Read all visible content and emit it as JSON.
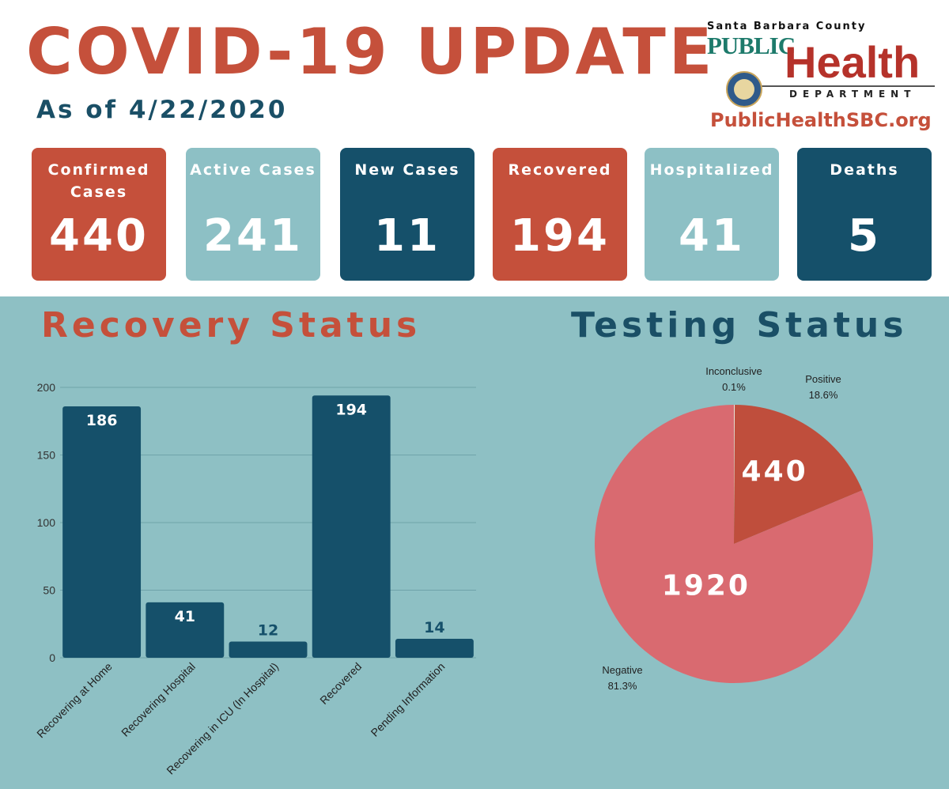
{
  "header": {
    "title": "COVID-19 UPDATE",
    "subtitle": "As of 4/22/2020"
  },
  "logo": {
    "county": "Santa Barbara County",
    "public": "PUBLIC",
    "health": "Health",
    "department": "DEPARTMENT",
    "url": "PublicHealthSBC.org"
  },
  "stats": [
    {
      "label": "Confirmed Cases",
      "value": "440",
      "color": "#c5503b"
    },
    {
      "label": "Active Cases",
      "value": "241",
      "color": "#8dc0c5"
    },
    {
      "label": "New Cases",
      "value": "11",
      "color": "#15506a"
    },
    {
      "label": "Recovered",
      "value": "194",
      "color": "#c5503b"
    },
    {
      "label": "Hospitalized",
      "value": "41",
      "color": "#8dc0c5"
    },
    {
      "label": "Deaths",
      "value": "5",
      "color": "#15506a"
    }
  ],
  "sections": {
    "recovery_title": "Recovery Status",
    "testing_title": "Testing Status"
  },
  "colors": {
    "bar": "#15506a",
    "grid": "#6fa3a9",
    "pie_positive": "#bf4e3c",
    "pie_negative": "#d96a70",
    "pie_inconclusive": "#e9e3d8",
    "background": "#8ec0c4"
  },
  "chart_data": [
    {
      "type": "bar",
      "title": "Recovery Status",
      "categories": [
        "Recovering at Home",
        "Recovering Hospital",
        "Recovering in ICU (In Hospital)",
        "Recovered",
        "Pending Information"
      ],
      "values": [
        186,
        41,
        12,
        194,
        14
      ],
      "ylim": [
        0,
        200
      ],
      "yticks": [
        0,
        50,
        100,
        150,
        200
      ],
      "grid": true
    },
    {
      "type": "pie",
      "title": "Testing Status",
      "slices": [
        {
          "label": "Inconclusive",
          "pct_label": "0.1%",
          "share": 0.001
        },
        {
          "label": "Positive",
          "pct_label": "18.6%",
          "share": 0.186,
          "value_label": "440"
        },
        {
          "label": "Negative",
          "pct_label": "81.3%",
          "share": 0.813,
          "value_label": "1920"
        }
      ]
    }
  ]
}
